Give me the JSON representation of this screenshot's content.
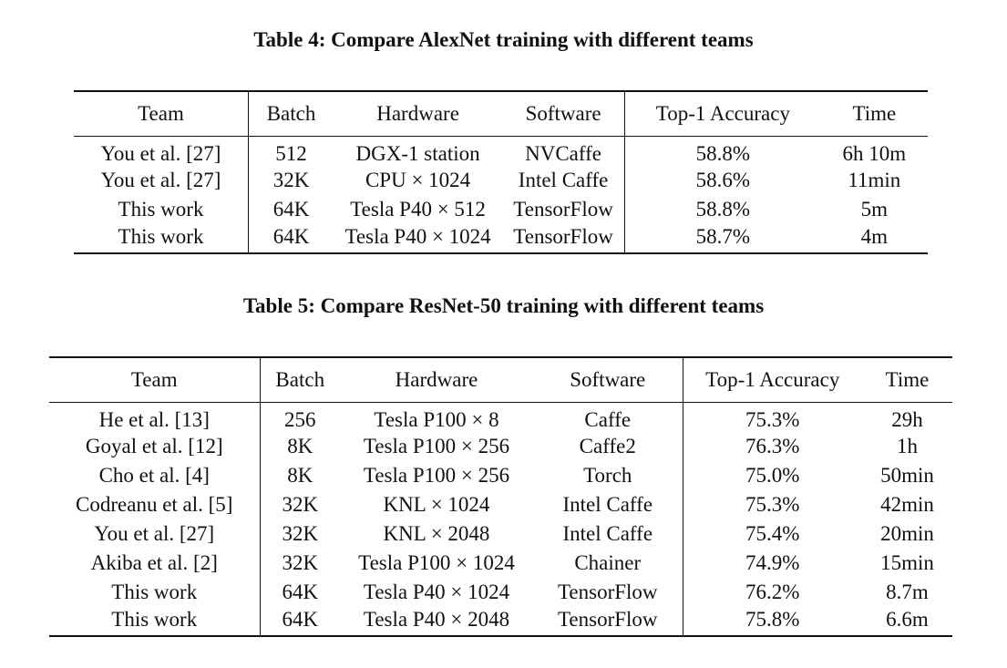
{
  "table4": {
    "caption": "Table 4: Compare AlexNet training with different teams",
    "headers": [
      "Team",
      "Batch",
      "Hardware",
      "Software",
      "Top-1 Accuracy",
      "Time"
    ],
    "rows": [
      [
        "You et al. [27]",
        "512",
        "DGX-1 station",
        "NVCaffe",
        "58.8%",
        "6h 10m"
      ],
      [
        "You et al. [27]",
        "32K",
        "CPU × 1024",
        "Intel Caffe",
        "58.6%",
        "11min"
      ],
      [
        "This work",
        "64K",
        "Tesla P40 × 512",
        "TensorFlow",
        "58.8%",
        "5m"
      ],
      [
        "This work",
        "64K",
        "Tesla P40 × 1024",
        "TensorFlow",
        "58.7%",
        "4m"
      ]
    ]
  },
  "table5": {
    "caption": "Table 5: Compare ResNet-50 training with different teams",
    "headers": [
      "Team",
      "Batch",
      "Hardware",
      "Software",
      "Top-1 Accuracy",
      "Time"
    ],
    "rows": [
      [
        "He et al. [13]",
        "256",
        "Tesla P100 × 8",
        "Caffe",
        "75.3%",
        "29h"
      ],
      [
        "Goyal et al. [12]",
        "8K",
        "Tesla P100 × 256",
        "Caffe2",
        "76.3%",
        "1h"
      ],
      [
        "Cho et al. [4]",
        "8K",
        "Tesla P100 × 256",
        "Torch",
        "75.0%",
        "50min"
      ],
      [
        "Codreanu et al. [5]",
        "32K",
        "KNL × 1024",
        "Intel Caffe",
        "75.3%",
        "42min"
      ],
      [
        "You et al. [27]",
        "32K",
        "KNL × 2048",
        "Intel Caffe",
        "75.4%",
        "20min"
      ],
      [
        "Akiba et al. [2]",
        "32K",
        "Tesla P100 × 1024",
        "Chainer",
        "74.9%",
        "15min"
      ],
      [
        "This work",
        "64K",
        "Tesla P40 × 1024",
        "TensorFlow",
        "76.2%",
        "8.7m"
      ],
      [
        "This work",
        "64K",
        "Tesla P40 × 2048",
        "TensorFlow",
        "75.8%",
        "6.6m"
      ]
    ]
  }
}
